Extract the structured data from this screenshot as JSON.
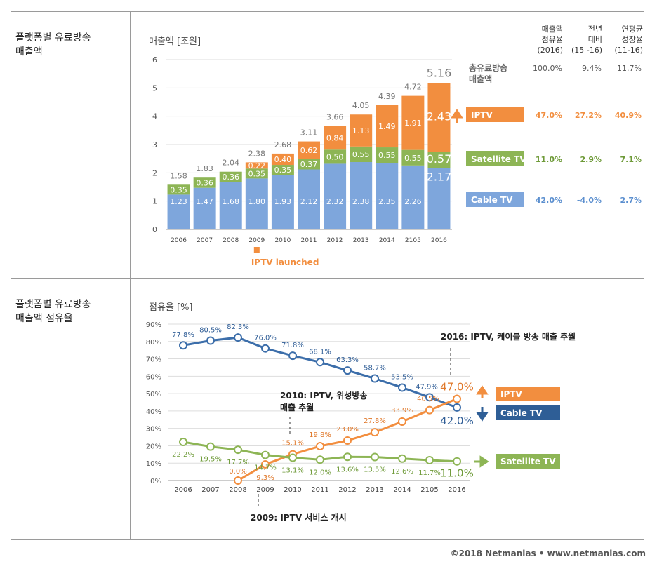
{
  "colors": {
    "cable": "#7ea6dc",
    "satellite": "#8db555",
    "iptv": "#f28e3f",
    "cable_line": "#3c6eaa",
    "sat_line": "#8db555",
    "iptv_line": "#f28e3f",
    "total": "#777777"
  },
  "sections": {
    "top_label": "플랫폼별 유료방송\n매출액",
    "bottom_label": "플랫폼별 유료방송\n매출액 점유율"
  },
  "table": {
    "headers": [
      "매출액\n점유율\n(2016)",
      "전년\n대비\n(15 -16)",
      "연평균\n성장율\n(11-16)"
    ],
    "rows": [
      {
        "label": "총유료방송\n매출액",
        "share": "100.0%",
        "yoy": "9.4%",
        "cagr": "11.7%"
      },
      {
        "label": "IPTV",
        "share": "47.0%",
        "yoy": "27.2%",
        "cagr": "40.9%"
      },
      {
        "label": "Satellite TV",
        "share": "11.0%",
        "yoy": "2.9%",
        "cagr": "7.1%"
      },
      {
        "label": "Cable TV",
        "share": "42.0%",
        "yoy": "-4.0%",
        "cagr": "2.7%"
      }
    ]
  },
  "chart_data": [
    {
      "type": "bar",
      "stacked": true,
      "ylabel": "매출액 [조원]",
      "ylim": [
        0,
        6
      ],
      "yticks": [
        "0",
        "1",
        "2",
        "3",
        "4",
        "5",
        "6"
      ],
      "categories": [
        "2006",
        "2007",
        "2008",
        "2009",
        "2010",
        "2011",
        "2012",
        "2013",
        "2014",
        "2105",
        "2016"
      ],
      "series": [
        {
          "name": "Cable TV",
          "values": [
            1.23,
            1.47,
            1.68,
            1.8,
            1.93,
            2.12,
            2.32,
            2.38,
            2.35,
            2.26,
            2.17
          ],
          "labels": [
            "1.23",
            "1.47",
            "1.68",
            "1.80",
            "1.93",
            "2.12",
            "2.32",
            "2.38",
            "2.35",
            "2.26",
            "2.17"
          ]
        },
        {
          "name": "Satellite TV",
          "values": [
            0.35,
            0.36,
            0.36,
            0.35,
            0.35,
            0.37,
            0.5,
            0.55,
            0.55,
            0.55,
            0.57
          ],
          "labels": [
            "0.35",
            "0.36",
            "0.36",
            "0.35",
            "0.35",
            "0.37",
            "0.50",
            "0.55",
            "0.55",
            "0.55",
            "0.57"
          ]
        },
        {
          "name": "IPTV",
          "values": [
            0,
            0,
            0,
            0.22,
            0.4,
            0.62,
            0.84,
            1.13,
            1.49,
            1.91,
            2.43
          ],
          "labels": [
            "",
            "",
            "",
            "0.22",
            "0.40",
            "0.62",
            "0.84",
            "1.13",
            "1.49",
            "1.91",
            "2.43"
          ]
        }
      ],
      "totals": [
        "1.58",
        "1.83",
        "2.04",
        "2.38",
        "2.68",
        "3.11",
        "3.66",
        "4.05",
        "4.39",
        "4.72",
        "5.16"
      ],
      "annotation": "IPTV launched"
    },
    {
      "type": "line",
      "ylabel": "점유율 [%]",
      "ylim": [
        0,
        90
      ],
      "yticks": [
        "0%",
        "10%",
        "20%",
        "30%",
        "40%",
        "50%",
        "60%",
        "70%",
        "80%",
        "90%"
      ],
      "categories": [
        "2006",
        "2007",
        "2008",
        "2009",
        "2010",
        "2011",
        "2012",
        "2013",
        "2014",
        "2105",
        "2016"
      ],
      "series": [
        {
          "name": "Cable TV",
          "values": [
            77.8,
            80.5,
            82.3,
            76.0,
            71.8,
            68.1,
            63.3,
            58.7,
            53.5,
            47.9,
            42.0
          ],
          "labels": [
            "77.8%",
            "80.5%",
            "82.3%",
            "76.0%",
            "71.8%",
            "68.1%",
            "63.3%",
            "58.7%",
            "53.5%",
            "47.9%",
            "42.0%"
          ]
        },
        {
          "name": "IPTV",
          "values": [
            null,
            null,
            0.0,
            9.3,
            15.1,
            19.8,
            23.0,
            27.8,
            33.9,
            40.5,
            47.0
          ],
          "labels": [
            "",
            "",
            "0.0%",
            "9.3%",
            "15.1%",
            "19.8%",
            "23.0%",
            "27.8%",
            "33.9%",
            "40.5%",
            "47.0%"
          ]
        },
        {
          "name": "Satellite TV",
          "values": [
            22.2,
            19.5,
            17.7,
            14.7,
            13.1,
            12.0,
            13.6,
            13.5,
            12.6,
            11.7,
            11.0
          ],
          "labels": [
            "22.2%",
            "19.5%",
            "17.7%",
            "14.7%",
            "13.1%",
            "12.0%",
            "13.6%",
            "13.5%",
            "12.6%",
            "11.7%",
            "11.0%"
          ]
        }
      ],
      "annotations": {
        "a2016": "2016: IPTV, 케이블 방송 매출 추월",
        "a2010": "2010: IPTV, 위성방송\n매출 추월",
        "a2009": "2009: IPTV 서비스 개시"
      },
      "legend": [
        "IPTV",
        "Cable TV",
        "Satellite TV"
      ]
    }
  ],
  "credit": "©2018 Netmanias • www.netmanias.com"
}
